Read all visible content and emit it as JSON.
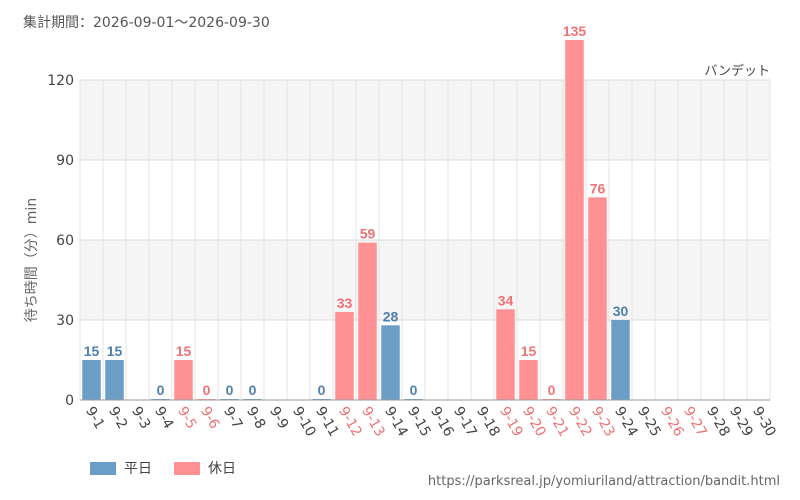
{
  "header": {
    "period_text": "集計期間：2026-09-01～2026-09-30",
    "attraction_name": "バンデット"
  },
  "footer": {
    "source_url": "https://parksreal.jp/yomiuriland/attraction/bandit.html"
  },
  "legend": {
    "weekday_label": "平日",
    "holiday_label": "休日"
  },
  "colors": {
    "weekday": "#6a9ec6",
    "holiday": "#ff9194",
    "weekday_text": "#4f7fab",
    "holiday_text": "#f07275"
  },
  "chart_data": {
    "type": "bar",
    "title": "",
    "ylabel": "待ち時間（分）min",
    "xlabel": "",
    "ylim": [
      0,
      120
    ],
    "yticks": [
      0,
      30,
      60,
      90,
      120
    ],
    "grid": true,
    "legend_position": "bottom-left",
    "categories": [
      "9-1",
      "9-2",
      "9-3",
      "9-4",
      "9-5",
      "9-6",
      "9-7",
      "9-8",
      "9-9",
      "9-10",
      "9-11",
      "9-12",
      "9-13",
      "9-14",
      "9-15",
      "9-16",
      "9-17",
      "9-18",
      "9-19",
      "9-20",
      "9-21",
      "9-22",
      "9-23",
      "9-24",
      "9-25",
      "9-26",
      "9-27",
      "9-28",
      "9-29",
      "9-30"
    ],
    "day_type": [
      "weekday",
      "weekday",
      "weekday",
      "weekday",
      "holiday",
      "holiday",
      "weekday",
      "weekday",
      "weekday",
      "weekday",
      "weekday",
      "holiday",
      "holiday",
      "weekday",
      "weekday",
      "weekday",
      "weekday",
      "weekday",
      "holiday",
      "holiday",
      "holiday",
      "holiday",
      "holiday",
      "weekday",
      "weekday",
      "holiday",
      "holiday",
      "weekday",
      "weekday",
      "weekday"
    ],
    "values": [
      15,
      15,
      null,
      0,
      15,
      0,
      0,
      0,
      null,
      null,
      0,
      33,
      59,
      28,
      0,
      null,
      null,
      null,
      34,
      15,
      0,
      135,
      76,
      30,
      null,
      null,
      null,
      null,
      null,
      null
    ]
  }
}
